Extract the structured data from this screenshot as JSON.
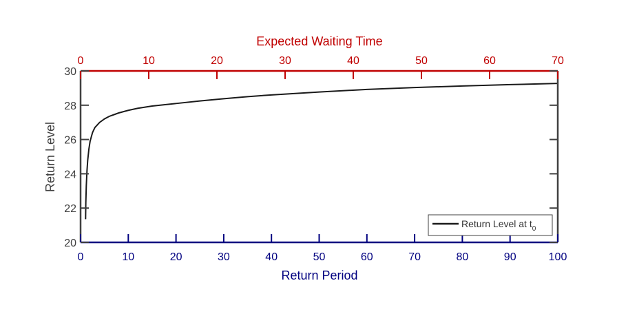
{
  "chart_data": {
    "type": "line",
    "top_axis": {
      "label": "Expected Waiting Time",
      "range": [
        0,
        70
      ],
      "ticks": [
        0,
        10,
        20,
        30,
        40,
        50,
        60,
        70
      ],
      "tick_labels": [
        "0",
        "10",
        "20",
        "30",
        "40",
        "50",
        "60",
        "70"
      ],
      "color": "#C00000"
    },
    "x_axis": {
      "label": "Return Period",
      "range": [
        0,
        100
      ],
      "ticks": [
        0,
        10,
        20,
        30,
        40,
        50,
        60,
        70,
        80,
        90,
        100
      ],
      "tick_labels": [
        "0",
        "10",
        "20",
        "30",
        "40",
        "50",
        "60",
        "70",
        "80",
        "90",
        "100"
      ],
      "color": "#000080"
    },
    "y_axis": {
      "label": "Return Level",
      "range": [
        20,
        30
      ],
      "ticks": [
        20,
        22,
        24,
        26,
        28,
        30
      ],
      "tick_labels": [
        "20",
        "22",
        "24",
        "26",
        "28",
        "30"
      ],
      "color": "#404040"
    },
    "grid": false,
    "legend": {
      "position": "bottom-right",
      "entries": [
        {
          "main": "Return Level at t",
          "sub": "0"
        }
      ]
    },
    "series": [
      {
        "name": "Return Level at t0",
        "color": "#1a1a1a",
        "x": [
          1.05,
          1.1,
          1.2,
          1.35,
          1.5,
          1.75,
          2,
          2.5,
          3,
          4,
          5,
          6,
          7,
          8,
          10,
          12,
          15,
          20,
          25,
          30,
          35,
          40,
          50,
          60,
          70,
          80,
          90,
          100
        ],
        "y": [
          21.35,
          22.3,
          23.3,
          24.2,
          24.8,
          25.45,
          25.9,
          26.4,
          26.7,
          27.0,
          27.2,
          27.35,
          27.45,
          27.55,
          27.7,
          27.82,
          27.95,
          28.1,
          28.25,
          28.38,
          28.5,
          28.6,
          28.77,
          28.92,
          29.03,
          29.12,
          29.2,
          29.27
        ]
      }
    ]
  }
}
